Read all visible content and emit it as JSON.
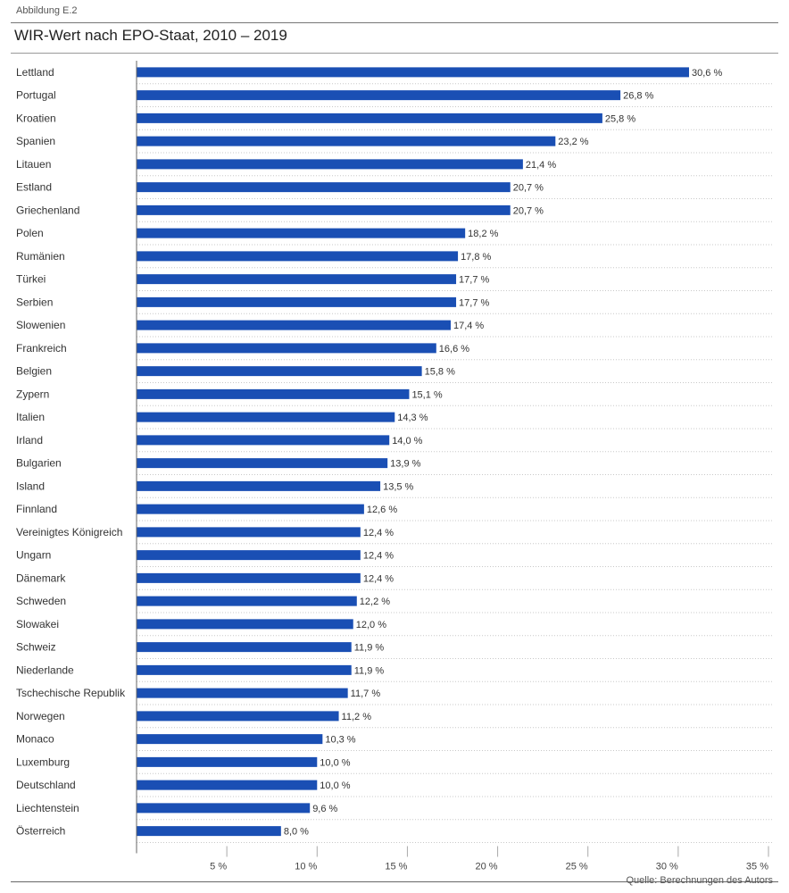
{
  "figure_label": "Abbildung E.2",
  "source": "Quelle: Berechnungen des Autors",
  "colors": {
    "bar": "#1a4fb4",
    "gridline": "#c8c8c8",
    "axis": "#666666"
  },
  "chart_data": {
    "type": "bar",
    "orientation": "horizontal",
    "title": "WIR-Wert nach EPO-Staat, 2010 – 2019",
    "xlabel": "",
    "ylabel": "",
    "xlim": [
      0,
      35
    ],
    "ticks": [
      {
        "value": 5,
        "label": "5 %"
      },
      {
        "value": 10,
        "label": "10 %"
      },
      {
        "value": 15,
        "label": "15 %"
      },
      {
        "value": 20,
        "label": "20 %"
      },
      {
        "value": 25,
        "label": "25 %"
      },
      {
        "value": 30,
        "label": "30 %"
      },
      {
        "value": 35,
        "label": "35 %"
      }
    ],
    "categories": [
      "Lettland",
      "Portugal",
      "Kroatien",
      "Spanien",
      "Litauen",
      "Estland",
      "Griechenland",
      "Polen",
      "Rumänien",
      "Türkei",
      "Serbien",
      "Slowenien",
      "Frankreich",
      "Belgien",
      "Zypern",
      "Italien",
      "Irland",
      "Bulgarien",
      "Island",
      "Finnland",
      "Vereinigtes Königreich",
      "Ungarn",
      "Dänemark",
      "Schweden",
      "Slowakei",
      "Schweiz",
      "Niederlande",
      "Tschechische Republik",
      "Norwegen",
      "Monaco",
      "Luxemburg",
      "Deutschland",
      "Liechtenstein",
      "Österreich"
    ],
    "values": [
      30.6,
      26.8,
      25.8,
      23.2,
      21.4,
      20.7,
      20.7,
      18.2,
      17.8,
      17.7,
      17.7,
      17.4,
      16.6,
      15.8,
      15.1,
      14.3,
      14.0,
      13.9,
      13.5,
      12.6,
      12.4,
      12.4,
      12.4,
      12.2,
      12.0,
      11.9,
      11.9,
      11.7,
      11.2,
      10.3,
      10.0,
      10.0,
      9.6,
      8.0
    ],
    "value_labels": [
      "30,6 %",
      "26,8 %",
      "25,8 %",
      "23,2 %",
      "21,4 %",
      "20,7 %",
      "20,7 %",
      "18,2 %",
      "17,8 %",
      "17,7 %",
      "17,7 %",
      "17,4 %",
      "16,6 %",
      "15,8 %",
      "15,1 %",
      "14,3 %",
      "14,0 %",
      "13,9 %",
      "13,5 %",
      "12,6 %",
      "12,4 %",
      "12,4 %",
      "12,4 %",
      "12,2 %",
      "12,0 %",
      "11,9 %",
      "11,9 %",
      "11,7 %",
      "11,2 %",
      "10,3 %",
      "10,0 %",
      "10,0 %",
      "9,6 %",
      "8,0 %"
    ],
    "grid": "horizontal dotted separators between rows"
  }
}
